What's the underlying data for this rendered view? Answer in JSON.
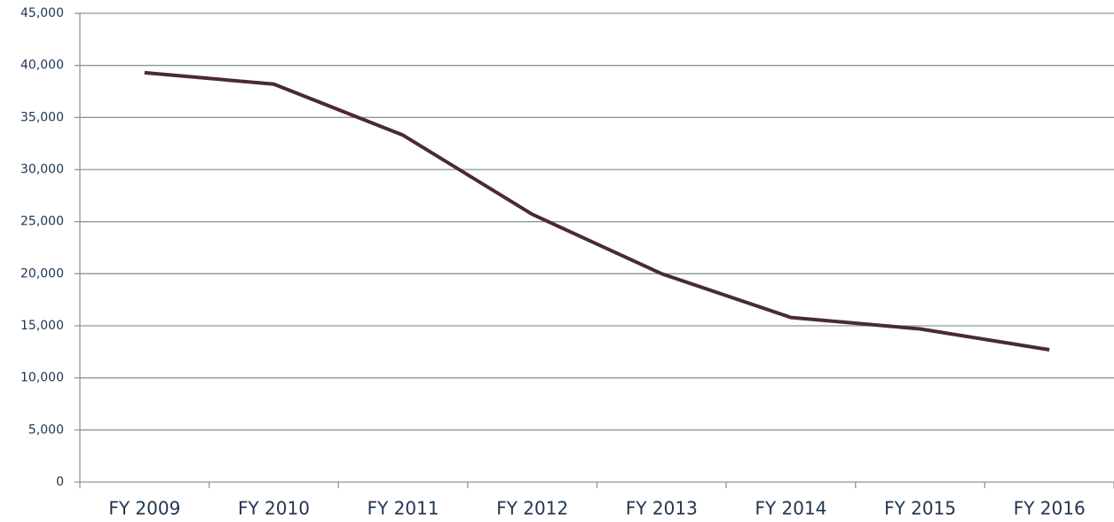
{
  "chart_data": {
    "type": "line",
    "categories": [
      "FY 2009",
      "FY 2010",
      "FY 2011",
      "FY 2012",
      "FY 2013",
      "FY 2014",
      "FY 2015",
      "FY 2016"
    ],
    "series": [
      {
        "name": "",
        "color": "#4a2a35",
        "values": [
          39300,
          38200,
          33300,
          25700,
          20000,
          15800,
          14700,
          12700
        ]
      }
    ],
    "ylim": [
      0,
      45000
    ],
    "yticks": [
      0,
      {
        "value": 5000,
        "label": "5,000"
      },
      {
        "value": 10000,
        "label": "10,000"
      },
      {
        "value": 15000,
        "label": "15,000"
      },
      {
        "value": 20000,
        "label": "20,000"
      },
      {
        "value": 25000,
        "label": "25,000"
      },
      {
        "value": 30000,
        "label": "30,000"
      },
      {
        "value": 35000,
        "label": "35,000"
      },
      {
        "value": 40000,
        "label": "40,000"
      },
      {
        "value": 45000,
        "label": "45,000"
      }
    ],
    "grid": true
  }
}
